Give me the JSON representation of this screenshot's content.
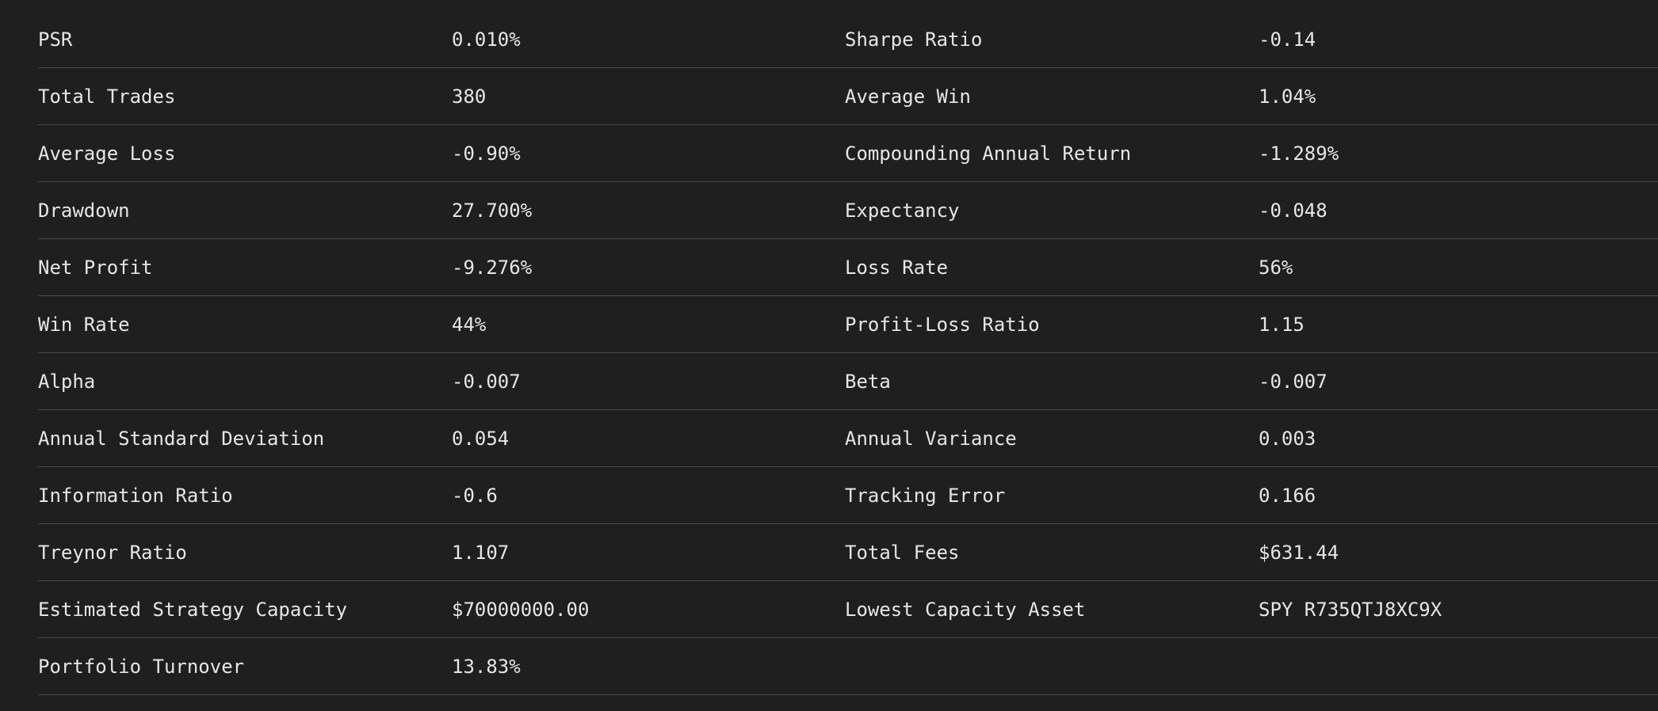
{
  "stats_table": {
    "rows": [
      {
        "left_label": "PSR",
        "left_value": "0.010%",
        "right_label": "Sharpe Ratio",
        "right_value": "-0.14"
      },
      {
        "left_label": "Total Trades",
        "left_value": "380",
        "right_label": "Average Win",
        "right_value": "1.04%"
      },
      {
        "left_label": "Average Loss",
        "left_value": "-0.90%",
        "right_label": "Compounding Annual Return",
        "right_value": "-1.289%"
      },
      {
        "left_label": "Drawdown",
        "left_value": "27.700%",
        "right_label": "Expectancy",
        "right_value": "-0.048"
      },
      {
        "left_label": "Net Profit",
        "left_value": "-9.276%",
        "right_label": "Loss Rate",
        "right_value": "56%"
      },
      {
        "left_label": "Win Rate",
        "left_value": "44%",
        "right_label": "Profit-Loss Ratio",
        "right_value": "1.15"
      },
      {
        "left_label": "Alpha",
        "left_value": "-0.007",
        "right_label": "Beta",
        "right_value": "-0.007"
      },
      {
        "left_label": "Annual Standard Deviation",
        "left_value": "0.054",
        "right_label": "Annual Variance",
        "right_value": "0.003"
      },
      {
        "left_label": "Information Ratio",
        "left_value": "-0.6",
        "right_label": "Tracking Error",
        "right_value": "0.166"
      },
      {
        "left_label": "Treynor Ratio",
        "left_value": "1.107",
        "right_label": "Total Fees",
        "right_value": "$631.44"
      },
      {
        "left_label": "Estimated Strategy Capacity",
        "left_value": "$70000000.00",
        "right_label": "Lowest Capacity Asset",
        "right_value": "SPY R735QTJ8XC9X"
      },
      {
        "left_label": "Portfolio Turnover",
        "left_value": "13.83%",
        "right_label": "",
        "right_value": ""
      }
    ]
  },
  "colors": {
    "background": "#1f1f1f",
    "text": "#e6e6e6",
    "divider": "#4a4a4a"
  }
}
